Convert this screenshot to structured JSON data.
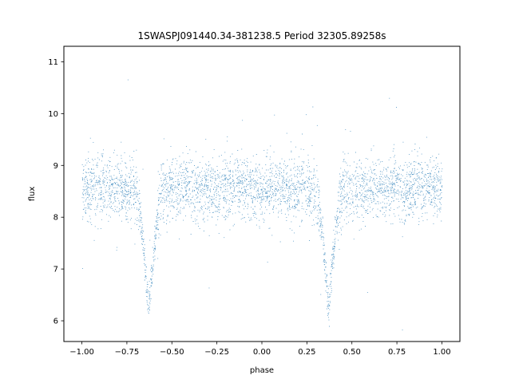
{
  "chart_data": {
    "type": "scatter",
    "title": "1SWASPJ091440.34-381238.5 Period 32305.89258s",
    "xlabel": "phase",
    "ylabel": "flux",
    "xlim": [
      -1.1,
      1.1
    ],
    "ylim": [
      5.6,
      11.3
    ],
    "xticks": [
      "−1.00",
      "−0.75",
      "−0.50",
      "−0.25",
      "0.00",
      "0.25",
      "0.50",
      "0.75",
      "1.00"
    ],
    "xtick_values": [
      -1.0,
      -0.75,
      -0.5,
      -0.25,
      0.0,
      0.25,
      0.5,
      0.75,
      1.0
    ],
    "yticks": [
      "6",
      "7",
      "8",
      "9",
      "10",
      "11"
    ],
    "ytick_values": [
      6,
      7,
      8,
      9,
      10,
      11
    ],
    "grid": false,
    "marker_color": "#1f77b4",
    "series": [
      {
        "x_range": [
          -1.0,
          1.0
        ],
        "baseline_flux": 8.55,
        "baseline_scatter": 0.3,
        "eclipse_phases": [
          -0.63,
          0.37
        ],
        "eclipse_min_flux": 6.2,
        "eclipse_halfwidth": 0.08
      }
    ]
  }
}
